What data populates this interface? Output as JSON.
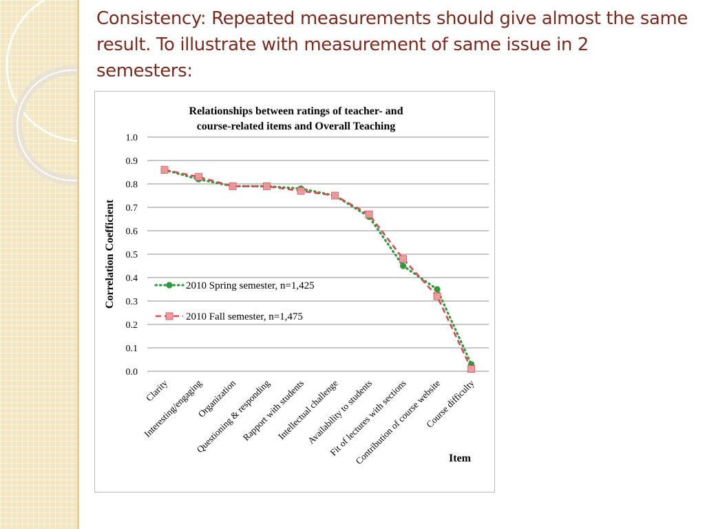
{
  "slide": {
    "title": "Consistency: Repeated measurements should give almost the same result. To illustrate with measurement of same issue in 2 semesters:"
  },
  "colors": {
    "title": "#7b2a1e",
    "spring": "#2e9a3c",
    "fall": "#d9474f",
    "fall_marker": "#ef9aa0",
    "grid": "#8c8c8c"
  },
  "chart_data": {
    "type": "line",
    "title_lines": [
      "Relationships between ratings of teacher- and",
      "course-related items and Overall Teaching"
    ],
    "xlabel": "Item",
    "ylabel": "Correlation Coefficient",
    "ylim": [
      0,
      1.0
    ],
    "yticks": [
      "0.0",
      "0.1",
      "0.2",
      "0.3",
      "0.4",
      "0.5",
      "0.6",
      "0.7",
      "0.8",
      "0.9",
      "1.0"
    ],
    "grid": true,
    "legend_position": "left-middle",
    "categories": [
      "Clarity",
      "Interesting/engaging",
      "Organization",
      "Questioning & responding",
      "Rapport with students",
      "Intellectual challenge",
      "Availability to students",
      "Fit of lectures with sections",
      "Contribution of course website",
      "Course difficulty"
    ],
    "series": [
      {
        "name": "2010 Spring semester, n=1,425",
        "style": "dotted",
        "marker": "circle",
        "values": [
          0.86,
          0.82,
          0.79,
          0.79,
          0.78,
          0.75,
          0.66,
          0.45,
          0.35,
          0.03
        ]
      },
      {
        "name": "2010 Fall semester, n=1,475",
        "style": "dashed",
        "marker": "square",
        "values": [
          0.86,
          0.83,
          0.79,
          0.79,
          0.77,
          0.75,
          0.67,
          0.48,
          0.32,
          0.01
        ]
      }
    ]
  }
}
